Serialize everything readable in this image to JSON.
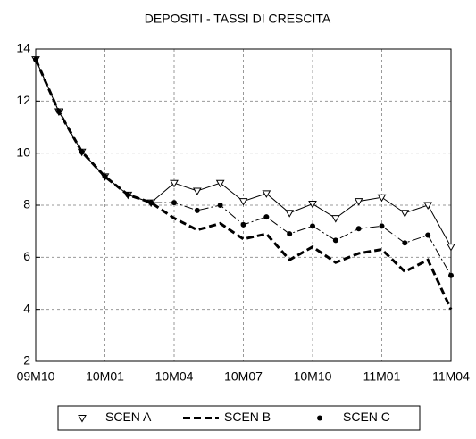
{
  "chart_data": {
    "type": "line",
    "title": "DEPOSITI  - TASSI DI CRESCITA",
    "categories": [
      "09M10",
      null,
      null,
      "10M01",
      null,
      null,
      "10M04",
      null,
      null,
      "10M07",
      null,
      null,
      "10M10",
      null,
      null,
      "11M01",
      null,
      null,
      "11M04"
    ],
    "ylim": [
      2,
      14
    ],
    "yticks": [
      2,
      4,
      6,
      8,
      10,
      12,
      14
    ],
    "grid": true,
    "legend": "bottom",
    "series": [
      {
        "name": "SCEN A",
        "color": "#000000",
        "marker": "triangle-down",
        "line_style": "solid",
        "values": [
          13.6,
          11.6,
          10.05,
          9.1,
          8.4,
          8.1,
          8.85,
          8.55,
          8.85,
          8.15,
          8.45,
          7.7,
          8.05,
          7.5,
          8.15,
          8.3,
          7.7,
          8.0,
          6.4
        ]
      },
      {
        "name": "SCEN B",
        "color": "#000000",
        "marker": "none",
        "line_style": "dashed",
        "values": [
          13.6,
          11.6,
          10.05,
          9.1,
          8.4,
          8.1,
          7.5,
          7.05,
          7.3,
          6.7,
          6.9,
          5.9,
          6.4,
          5.8,
          6.15,
          6.3,
          5.45,
          5.9,
          4.0
        ]
      },
      {
        "name": "SCEN C",
        "color": "#000000",
        "marker": "circle",
        "line_style": "dash-dot",
        "values": [
          13.6,
          11.6,
          10.05,
          9.1,
          8.4,
          8.1,
          8.1,
          7.8,
          8.0,
          7.25,
          7.55,
          6.9,
          7.2,
          6.65,
          7.1,
          7.2,
          6.55,
          6.85,
          5.3
        ]
      }
    ]
  }
}
